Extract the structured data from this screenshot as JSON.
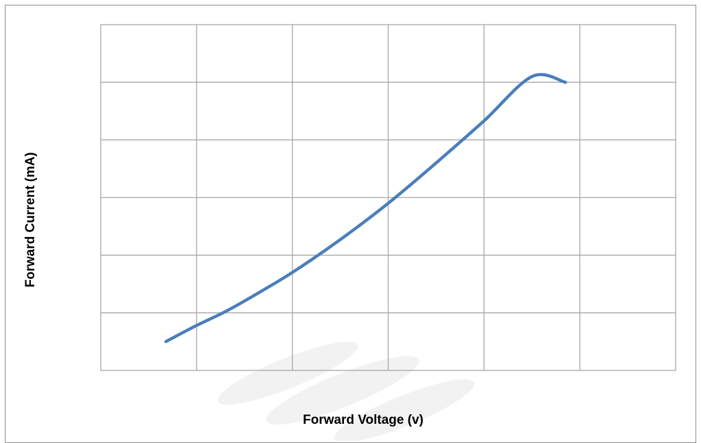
{
  "chart_data": {
    "type": "line",
    "title": "",
    "xlabel": "Forward Voltage (v)",
    "ylabel": "Forward Current  (mA)",
    "xlim": [
      0,
      6
    ],
    "ylim": [
      0,
      6
    ],
    "grid": true,
    "legend": "none",
    "tick_labels_shown": false,
    "series": [
      {
        "color": "#4a7ebb",
        "x": [
          0.68,
          1.0,
          1.3,
          1.6,
          2.0,
          2.5,
          3.0,
          3.5,
          4.0,
          4.5,
          4.85
        ],
        "y": [
          0.5,
          0.78,
          1.02,
          1.3,
          1.7,
          2.27,
          2.9,
          3.6,
          4.33,
          5.1,
          5.0
        ]
      }
    ]
  },
  "colors": {
    "series": "#4a7ebb",
    "grid": "#a6a6a6",
    "frame": "#8c8c8c"
  }
}
